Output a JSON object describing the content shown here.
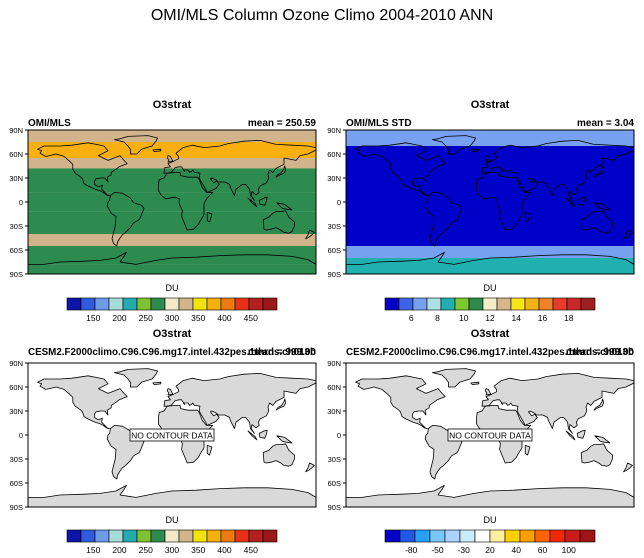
{
  "figure": {
    "title": "OMI/MLS Column Ozone Climo 2004-2010 ANN"
  },
  "colors": {
    "ozone_scale": [
      "#0a14a8",
      "#2e5be0",
      "#6f9ae8",
      "#a5dcdc",
      "#22aeae",
      "#7fc230",
      "#2e8b50",
      "#f2e8c6",
      "#d2b48c",
      "#f5e20c",
      "#f7b010",
      "#f07a10",
      "#e83018",
      "#b42020",
      "#9a1818"
    ],
    "std_scale": [
      "#0000c8",
      "#3c64e6",
      "#78a0f0",
      "#aae0e8",
      "#20b0b0",
      "#7ec832",
      "#2e8b50",
      "#f5eec8",
      "#d7b48c",
      "#f5e614",
      "#f5b414",
      "#f08228",
      "#e63c28",
      "#c82828",
      "#a01e1e"
    ],
    "diff_scale": [
      "#0000c8",
      "#1e5ae6",
      "#28a0f5",
      "#78c8f8",
      "#aad2fa",
      "#c8ecf8",
      "#ffffff",
      "#fff0a0",
      "#ffd200",
      "#ffa000",
      "#ff6400",
      "#f02800",
      "#c81e1e",
      "#a01414"
    ],
    "land": "#d9d9d9",
    "coast": "#000000"
  },
  "chart_data": [
    {
      "type": "heatmap",
      "title": "O3strat",
      "left_label": "OMI/MLS",
      "right_label": "mean = 250.59",
      "ylabels": [
        "90N",
        "60N",
        "30N",
        "0",
        "30S",
        "60S",
        "90S"
      ],
      "ylim": [
        -90,
        90
      ],
      "fill": "ozone",
      "colorbar": {
        "label": "DU",
        "tick_labels": [
          "150",
          "200",
          "250",
          "300",
          "350",
          "400",
          "450"
        ],
        "values": [
          150,
          200,
          250,
          300,
          350,
          400,
          450
        ]
      },
      "zonal_bands": [
        {
          "lat_from": 90,
          "lat_to": 75,
          "value": 340
        },
        {
          "lat_from": 75,
          "lat_to": 55,
          "value": 360
        },
        {
          "lat_from": 55,
          "lat_to": 42,
          "value": 320
        },
        {
          "lat_from": 42,
          "lat_to": 25,
          "value": 290
        },
        {
          "lat_from": 25,
          "lat_to": 12,
          "value": 265
        },
        {
          "lat_from": 12,
          "lat_to": -12,
          "value": 255
        },
        {
          "lat_from": -12,
          "lat_to": -25,
          "value": 265
        },
        {
          "lat_from": -25,
          "lat_to": -40,
          "value": 290
        },
        {
          "lat_from": -40,
          "lat_to": -55,
          "value": 320
        },
        {
          "lat_from": -55,
          "lat_to": -65,
          "value": 300
        },
        {
          "lat_from": -65,
          "lat_to": -78,
          "value": 280
        },
        {
          "lat_from": -78,
          "lat_to": -90,
          "value": 300
        }
      ]
    },
    {
      "type": "heatmap",
      "title": "O3strat",
      "left_label": "OMI/MLS STD",
      "right_label": "mean =   3.04",
      "ylabels": [
        "90N",
        "60N",
        "30N",
        "0",
        "30S",
        "60S",
        "90S"
      ],
      "ylim": [
        -90,
        90
      ],
      "fill": "std",
      "colorbar": {
        "label": "DU",
        "tick_labels": [
          "6",
          "8",
          "10",
          "12",
          "14",
          "16",
          "18"
        ],
        "values": [
          6,
          8,
          10,
          12,
          14,
          16,
          18
        ]
      },
      "zonal_bands": [
        {
          "lat_from": 90,
          "lat_to": 70,
          "value": 7
        },
        {
          "lat_from": 70,
          "lat_to": 55,
          "value": 6
        },
        {
          "lat_from": 55,
          "lat_to": -55,
          "value": 4
        },
        {
          "lat_from": -55,
          "lat_to": -70,
          "value": 7
        },
        {
          "lat_from": -70,
          "lat_to": -90,
          "value": 9
        }
      ]
    },
    {
      "type": "heatmap",
      "title": "O3strat",
      "left_label": "CESM2.F2000climo.C96.C96.mg17.intel.432pes.1thrds.ch013b",
      "right_label": "mean = 999.00",
      "ylabels": [
        "90N",
        "60N",
        "30N",
        "0",
        "30S",
        "60S",
        "90S"
      ],
      "ylim": [
        -90,
        90
      ],
      "fill": "none",
      "annotation": "NO CONTOUR DATA",
      "colorbar": {
        "label": "DU",
        "tick_labels": [
          "150",
          "200",
          "250",
          "300",
          "350",
          "400",
          "450"
        ],
        "values": [
          150,
          200,
          250,
          300,
          350,
          400,
          450
        ]
      }
    },
    {
      "type": "heatmap",
      "title": "O3strat",
      "left_label": "CESM2.F2000climo.C96.C96.mg17.intel.432pes.1thrds.ch013b",
      "right_label": "mean = 999.00",
      "ylabels": [
        "90N",
        "60N",
        "30N",
        "0",
        "30S",
        "60S",
        "90S"
      ],
      "ylim": [
        -90,
        90
      ],
      "fill": "none",
      "annotation": "NO CONTOUR DATA",
      "colorbar": {
        "label": "DU",
        "tick_labels": [
          "-80",
          "-50",
          "-30",
          "20",
          "40",
          "60",
          "100"
        ],
        "values": [
          -80,
          -50,
          -30,
          20,
          40,
          60,
          100
        ]
      }
    }
  ]
}
